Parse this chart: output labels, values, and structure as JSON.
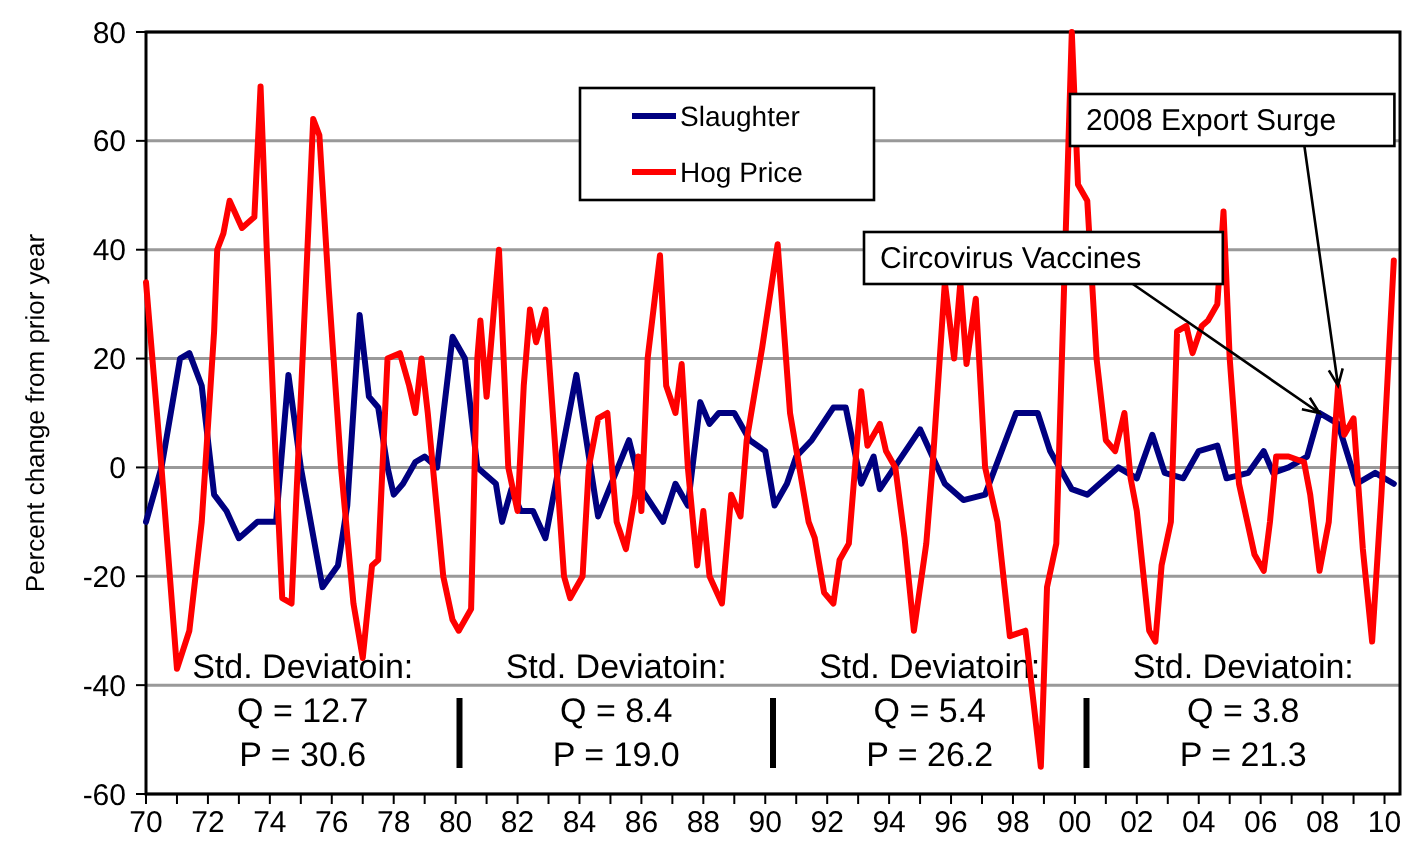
{
  "chart_data": {
    "type": "line",
    "ylabel": "Percent change from prior year",
    "xlim": [
      1970,
      2010.5
    ],
    "xticks": [
      {
        "value": 1970,
        "label": "70"
      },
      {
        "value": 1971,
        "label": null
      },
      {
        "value": 1972,
        "label": "72"
      },
      {
        "value": 1973,
        "label": null
      },
      {
        "value": 1974,
        "label": "74"
      },
      {
        "value": 1975,
        "label": null
      },
      {
        "value": 1976,
        "label": "76"
      },
      {
        "value": 1977,
        "label": null
      },
      {
        "value": 1978,
        "label": "78"
      },
      {
        "value": 1979,
        "label": null
      },
      {
        "value": 1980,
        "label": "80"
      },
      {
        "value": 1981,
        "label": null
      },
      {
        "value": 1982,
        "label": "82"
      },
      {
        "value": 1983,
        "label": null
      },
      {
        "value": 1984,
        "label": "84"
      },
      {
        "value": 1985,
        "label": null
      },
      {
        "value": 1986,
        "label": "86"
      },
      {
        "value": 1987,
        "label": null
      },
      {
        "value": 1988,
        "label": "88"
      },
      {
        "value": 1989,
        "label": null
      },
      {
        "value": 1990,
        "label": "90"
      },
      {
        "value": 1991,
        "label": null
      },
      {
        "value": 1992,
        "label": "92"
      },
      {
        "value": 1993,
        "label": null
      },
      {
        "value": 1994,
        "label": "94"
      },
      {
        "value": 1995,
        "label": null
      },
      {
        "value": 1996,
        "label": "96"
      },
      {
        "value": 1997,
        "label": null
      },
      {
        "value": 1998,
        "label": "98"
      },
      {
        "value": 1999,
        "label": null
      },
      {
        "value": 2000,
        "label": "00"
      },
      {
        "value": 2001,
        "label": null
      },
      {
        "value": 2002,
        "label": "02"
      },
      {
        "value": 2003,
        "label": null
      },
      {
        "value": 2004,
        "label": "04"
      },
      {
        "value": 2005,
        "label": null
      },
      {
        "value": 2006,
        "label": "06"
      },
      {
        "value": 2007,
        "label": null
      },
      {
        "value": 2008,
        "label": "08"
      },
      {
        "value": 2009,
        "label": null
      },
      {
        "value": 2010,
        "label": "10"
      }
    ],
    "ylim": [
      -60,
      80
    ],
    "yticks": [
      -60,
      -40,
      -20,
      0,
      20,
      40,
      60,
      80
    ],
    "grid": "y",
    "legend": "top",
    "line_style": "solid",
    "marker": "none",
    "series": [
      {
        "name": "Slaughter",
        "color": "#000080",
        "x": [
          1970,
          1970.5,
          1971.1,
          1971.4,
          1971.8,
          1972.2,
          1972.6,
          1973,
          1973.6,
          1974.2,
          1974.6,
          1975.0,
          1975.7,
          1976.2,
          1976.5,
          1976.9,
          1977.2,
          1977.5,
          1977.8,
          1978,
          1978.3,
          1978.7,
          1979,
          1979.4,
          1979.9,
          1980.3,
          1980.7,
          1981.3,
          1981.5,
          1981.8,
          1982.1,
          1982.5,
          1982.9,
          1983.9,
          1984.6,
          1985.6,
          1986,
          1986.7,
          1987.1,
          1987.5,
          1987.9,
          1988.2,
          1988.5,
          1989,
          1989.5,
          1990,
          1990.3,
          1990.7,
          1991,
          1991.5,
          1992.2,
          1992.6,
          1993.1,
          1993.5,
          1993.7,
          1995,
          1995.8,
          1996.4,
          1997.1,
          1998.1,
          1998.8,
          1999.2,
          1999.9,
          2000.4,
          2000.8,
          2001.4,
          2002,
          2002.5,
          2002.9,
          2003.5,
          2004,
          2004.6,
          2004.9,
          2005.6,
          2006.1,
          2006.4,
          2006.9,
          2007.5,
          2007.9,
          2008.5,
          2009.1,
          2009.7,
          2010.3
        ],
        "values": [
          -10,
          0,
          20,
          21,
          15,
          -5,
          -8,
          -13,
          -10,
          -10,
          17,
          0,
          -22,
          -18,
          -7,
          28,
          13,
          11,
          0,
          -5,
          -3,
          1,
          2,
          0,
          24,
          20,
          0,
          -3,
          -10,
          -4,
          -8,
          -8,
          -13,
          17,
          -9,
          5,
          -4,
          -10,
          -3,
          -7,
          12,
          8,
          10,
          10,
          5,
          3,
          -7,
          -3,
          2,
          5,
          11,
          11,
          -3,
          2,
          -4,
          7,
          -3,
          -6,
          -5,
          10,
          10,
          3,
          -4,
          -5,
          -3,
          0,
          -2,
          6,
          -1,
          -2,
          3,
          4,
          -2,
          -1,
          3,
          -1,
          0,
          2,
          10,
          8,
          -3,
          -1,
          -3
        ]
      },
      {
        "name": "Hog Price",
        "color": "#ff0000",
        "x": [
          1970,
          1970.5,
          1971,
          1971.4,
          1971.8,
          1972.2,
          1972.3,
          1972.5,
          1972.7,
          1973.1,
          1973.5,
          1973.7,
          1973.9,
          1974.2,
          1974.4,
          1974.7,
          1974.9,
          1975.4,
          1975.6,
          1975.9,
          1976.3,
          1976.7,
          1977,
          1977.3,
          1977.5,
          1977.8,
          1978.2,
          1978.5,
          1978.7,
          1978.9,
          1979.1,
          1979.6,
          1979.9,
          1980.1,
          1980.5,
          1980.7,
          1980.8,
          1981,
          1981.4,
          1981.7,
          1982,
          1982.2,
          1982.4,
          1982.6,
          1982.9,
          1983.2,
          1983.5,
          1983.7,
          1984.1,
          1984.3,
          1984.6,
          1984.9,
          1985.2,
          1985.5,
          1985.8,
          1985.9,
          1986,
          1986.2,
          1986.6,
          1986.8,
          1987.1,
          1987.3,
          1987.5,
          1987.8,
          1988,
          1988.2,
          1988.6,
          1988.9,
          1989.2,
          1989.4,
          1989.9,
          1990.4,
          1990.8,
          1991.4,
          1991.6,
          1991.9,
          1992.2,
          1992.4,
          1992.7,
          1992.9,
          1993.1,
          1993.3,
          1993.7,
          1993.9,
          1994.2,
          1994.5,
          1994.8,
          1995.2,
          1995.4,
          1995.8,
          1996.1,
          1996.3,
          1996.5,
          1996.8,
          1997.1,
          1997.5,
          1997.9,
          1998.4,
          1998.9,
          1999.1,
          1999.4,
          1999.9,
          2000.1,
          2000.4,
          2000.7,
          2001,
          2001.3,
          2001.6,
          2001.8,
          2002,
          2002.4,
          2002.6,
          2002.8,
          2003.1,
          2003.3,
          2003.6,
          2003.8,
          2004.1,
          2004.3,
          2004.6,
          2004.8,
          2005,
          2005.3,
          2005.8,
          2006.1,
          2006.3,
          2006.5,
          2006.9,
          2007.4,
          2007.6,
          2007.9,
          2008.2,
          2008.5,
          2008.7,
          2009,
          2009.3,
          2009.6,
          2009.9,
          2010.3
        ],
        "values": [
          34,
          0,
          -37,
          -30,
          -10,
          25,
          40,
          43,
          49,
          44,
          46,
          70,
          40,
          0,
          -24,
          -25,
          0,
          64,
          61,
          33,
          0,
          -25,
          -35,
          -18,
          -17,
          20,
          21,
          15,
          10,
          20,
          10,
          -20,
          -28,
          -30,
          -26,
          20,
          27,
          13,
          40,
          0,
          -8,
          15,
          29,
          23,
          29,
          5,
          -20,
          -24,
          -20,
          0,
          9,
          10,
          -10,
          -15,
          -5,
          2,
          -8,
          20,
          39,
          15,
          10,
          19,
          0,
          -18,
          -8,
          -20,
          -25,
          -5,
          -9,
          5,
          22,
          41,
          10,
          -10,
          -13,
          -23,
          -25,
          -17,
          -14,
          0,
          14,
          4,
          8,
          3,
          0,
          -13,
          -30,
          -14,
          0,
          34,
          20,
          34,
          19,
          31,
          0,
          -10,
          -31,
          -30,
          -55,
          -22,
          -14,
          80,
          52,
          49,
          20,
          5,
          3,
          10,
          -2,
          -8,
          -30,
          -32,
          -18,
          -10,
          25,
          26,
          21,
          26,
          27,
          30,
          47,
          20,
          -3,
          -16,
          -19,
          -10,
          2,
          2,
          1,
          -5,
          -19,
          -10,
          15,
          6,
          9,
          -15,
          -32,
          -5,
          38
        ]
      }
    ],
    "annotations": [
      {
        "text": "Circovirus Vaccines",
        "x": 2007.9,
        "y": 10
      },
      {
        "text": "2008 Export Surge",
        "x": 2008.5,
        "y": 15
      },
      "Std. Deviatoin:\nQ = 12.7\nP = 30.6",
      "Std. Deviatoin:\nQ = 8.4\nP = 19.0",
      "Std. Deviatoin:\nQ = 5.4\nP = 26.2",
      "Std. Deviatoin:\nQ = 3.8\nP = 21.3"
    ]
  }
}
